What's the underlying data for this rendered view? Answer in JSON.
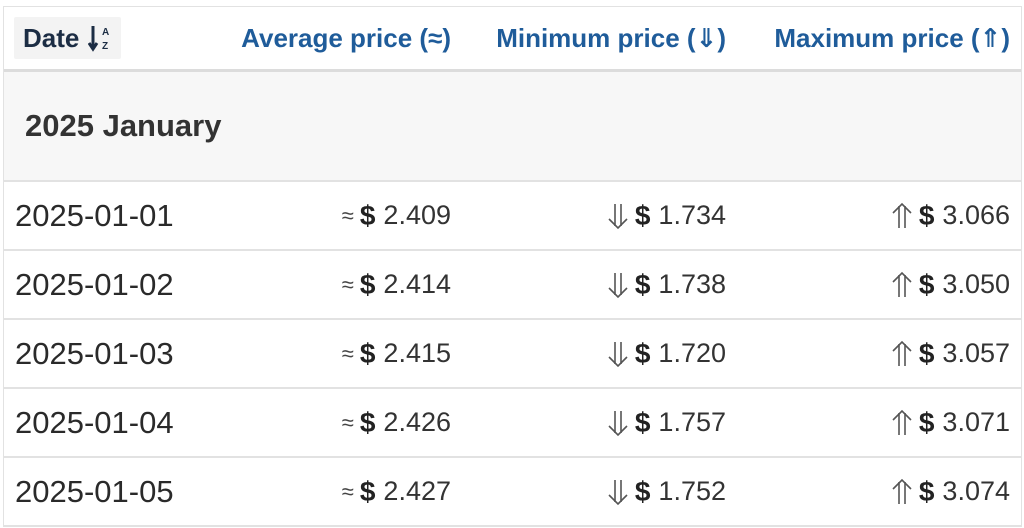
{
  "table": {
    "headers": {
      "date": "Date",
      "average": "Average price (≈)",
      "minimum": "Minimum price (⇓)",
      "maximum": "Maximum price (⇑)"
    },
    "sort_icon": "sort-alpha-down-icon",
    "group": "2025 January",
    "currency": "$",
    "symbols": {
      "average": "≈",
      "minimum": "⇓",
      "maximum": "⇑"
    },
    "rows": [
      {
        "date": "2025-01-01",
        "avg": "2.409",
        "min": "1.734",
        "max": "3.066"
      },
      {
        "date": "2025-01-02",
        "avg": "2.414",
        "min": "1.738",
        "max": "3.050"
      },
      {
        "date": "2025-01-03",
        "avg": "2.415",
        "min": "1.720",
        "max": "3.057"
      },
      {
        "date": "2025-01-04",
        "avg": "2.426",
        "min": "1.757",
        "max": "3.071"
      },
      {
        "date": "2025-01-05",
        "avg": "2.427",
        "min": "1.752",
        "max": "3.074"
      }
    ]
  },
  "colors": {
    "header_text": "#1f5c9a",
    "date_header_text": "#1c2d44",
    "body_text": "#333333",
    "group_background": "#f7f7f7",
    "border": "#e2e2e2"
  }
}
